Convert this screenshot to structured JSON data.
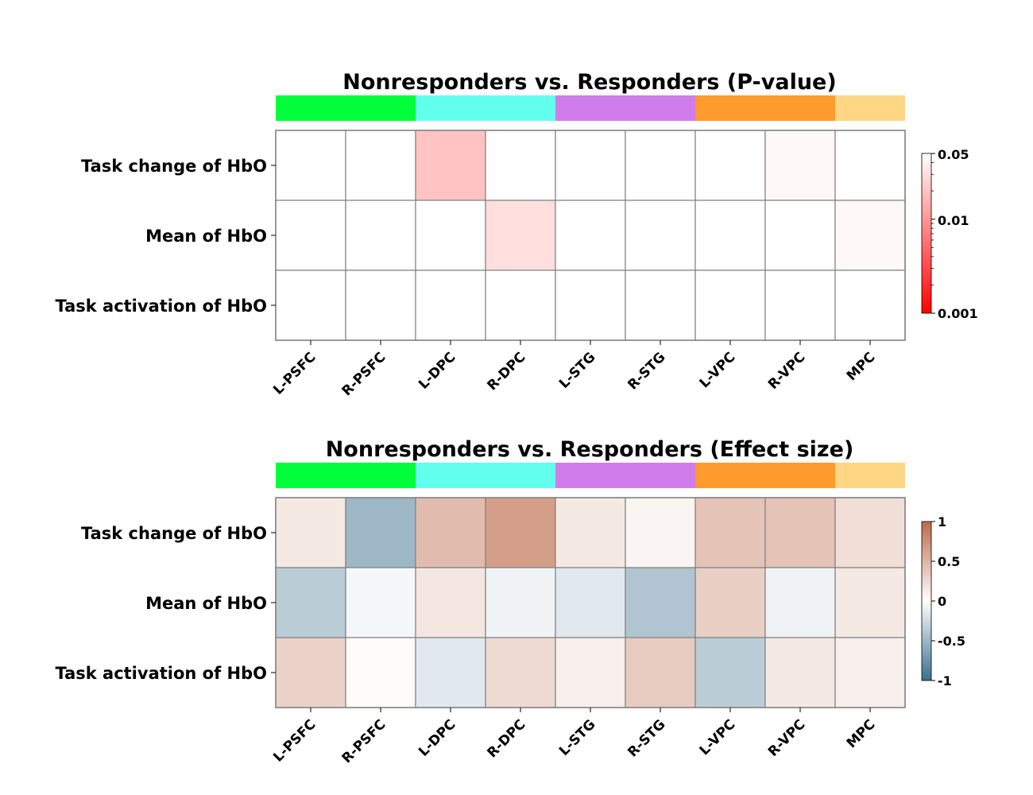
{
  "chart_data": [
    {
      "type": "heatmap",
      "title": "Nonresponders vs. Responders (P-value)",
      "rows": [
        "Task change of HbO",
        "Mean of HbO",
        "Task activation of HbO"
      ],
      "columns": [
        "L-PSFC",
        "R-PSFC",
        "L-DPC",
        "R-DPC",
        "L-STG",
        "R-STG",
        "L-VPC",
        "R-VPC",
        "MPC"
      ],
      "values": [
        [
          null,
          null,
          0.02,
          null,
          null,
          null,
          null,
          0.045,
          null
        ],
        [
          null,
          null,
          null,
          0.03,
          null,
          null,
          null,
          null,
          0.045
        ],
        [
          null,
          null,
          null,
          null,
          null,
          null,
          null,
          null,
          null
        ]
      ],
      "group_bar": [
        {
          "color": "#00ff3a",
          "columns": 2
        },
        {
          "color": "#63ffee",
          "columns": 2
        },
        {
          "color": "#d17ceb",
          "columns": 2
        },
        {
          "color": "#ff9a2d",
          "columns": 2
        },
        {
          "color": "#ffd684",
          "columns": 1
        }
      ],
      "colorbar": {
        "scale": "log",
        "range": [
          0.001,
          0.05
        ],
        "ticks": [
          0.05,
          0.01,
          0.001
        ],
        "tick_labels": [
          "0.05",
          "0.01",
          "0.001"
        ],
        "colors": [
          "#ff0000",
          "#ffffff"
        ]
      }
    },
    {
      "type": "heatmap",
      "title": "Nonresponders vs. Responders (Effect size)",
      "rows": [
        "Task change of HbO",
        "Mean of HbO",
        "Task activation of HbO"
      ],
      "columns": [
        "L-PSFC",
        "R-PSFC",
        "L-DPC",
        "R-DPC",
        "L-STG",
        "R-STG",
        "L-VPC",
        "R-VPC",
        "MPC"
      ],
      "values": [
        [
          0.15,
          -0.5,
          0.45,
          0.65,
          0.15,
          0.07,
          0.4,
          0.4,
          0.22
        ],
        [
          -0.35,
          -0.05,
          0.16,
          -0.08,
          -0.15,
          -0.4,
          0.32,
          -0.08,
          0.15
        ],
        [
          0.3,
          0.02,
          -0.15,
          0.25,
          0.1,
          0.35,
          -0.35,
          0.15,
          0.1
        ]
      ],
      "group_bar": [
        {
          "color": "#00ff3a",
          "columns": 2
        },
        {
          "color": "#63ffee",
          "columns": 2
        },
        {
          "color": "#d17ceb",
          "columns": 2
        },
        {
          "color": "#ff9a2d",
          "columns": 2
        },
        {
          "color": "#ffd684",
          "columns": 1
        }
      ],
      "colorbar": {
        "scale": "linear",
        "range": [
          -1,
          1
        ],
        "ticks": [
          1,
          0.5,
          0,
          -0.5,
          -1
        ],
        "tick_labels": [
          "1",
          "0.5",
          "0",
          "-0.5",
          "-1"
        ],
        "colors": [
          "#3a6f8c",
          "#ffffff",
          "#bd6a4a"
        ]
      }
    }
  ]
}
